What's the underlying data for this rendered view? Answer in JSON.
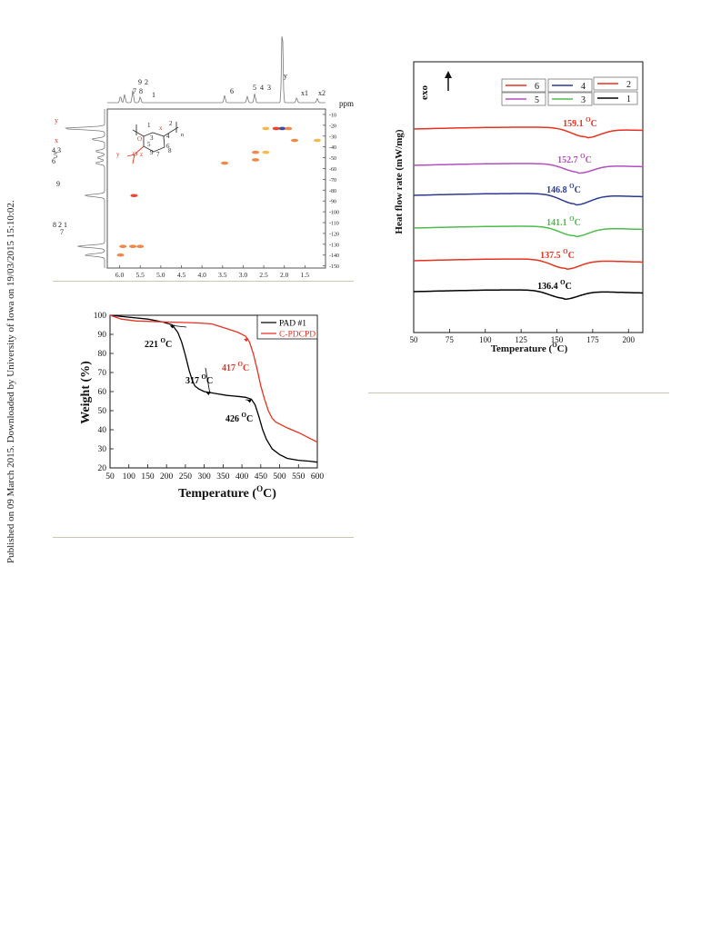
{
  "sidebar_note": "Published on 09 March 2015. Downloaded by University of Iowa on 19/03/2015 15:10:02.",
  "colors": {
    "black": "#000000",
    "red": "#e8311f",
    "blue": "#2b3a93",
    "purple": "#b34ec0",
    "green": "#4fbd4a",
    "orange": "#ef7a35",
    "rule": "#c9c6b2"
  },
  "chart_data": [
    {
      "type": "heatmap",
      "xlabel": "ppm",
      "xlim": [
        6.3,
        1.0
      ],
      "x_ticks": [
        "6.0",
        "5.5",
        "5.0",
        "4.5",
        "4.0",
        "3.5",
        "3.0",
        "2.5",
        "2.0",
        "1.5"
      ],
      "y_ticks": [
        "10",
        "20",
        "30",
        "40",
        "50",
        "60",
        "70",
        "80",
        "90",
        "100",
        "110",
        "120",
        "130",
        "140",
        "150"
      ],
      "ylim": [
        5,
        152
      ],
      "top_peak_labels": [
        "9",
        "2",
        "7",
        "8",
        "1",
        "6",
        "5",
        "4",
        "3",
        "y",
        "x1",
        "x2"
      ],
      "left_peak_labels": [
        "y",
        "x",
        "4,3",
        "5",
        "6",
        "9",
        "8 2 1",
        "7"
      ],
      "structure_labels": {
        "ring": [
          "1",
          "2",
          "3",
          "4",
          "5",
          "6",
          "7",
          "8",
          "9"
        ],
        "side": [
          "x",
          "y",
          "z",
          "O",
          "O"
        ],
        "n": "n"
      },
      "cross_peaks": [
        {
          "x": 2.05,
          "y": 23,
          "color": "#2b3a93"
        },
        {
          "x": 2.2,
          "y": 23,
          "color": "#e8311f"
        },
        {
          "x": 1.9,
          "y": 23,
          "color": "#ef7a35"
        },
        {
          "x": 2.45,
          "y": 23,
          "color": "#f5b335"
        },
        {
          "x": 1.75,
          "y": 34,
          "color": "#ef7a35"
        },
        {
          "x": 1.2,
          "y": 34,
          "color": "#f5b335"
        },
        {
          "x": 2.7,
          "y": 45,
          "color": "#ef7a35"
        },
        {
          "x": 2.45,
          "y": 45,
          "color": "#f5b335"
        },
        {
          "x": 2.7,
          "y": 52,
          "color": "#ef7a35"
        },
        {
          "x": 3.45,
          "y": 55,
          "color": "#ef7a35"
        },
        {
          "x": 5.65,
          "y": 85,
          "color": "#e8311f"
        },
        {
          "x": 5.92,
          "y": 132,
          "color": "#ef7a35"
        },
        {
          "x": 5.68,
          "y": 132,
          "color": "#ef7a35"
        },
        {
          "x": 5.5,
          "y": 132,
          "color": "#ef7a35"
        },
        {
          "x": 5.98,
          "y": 140,
          "color": "#ef7a35"
        }
      ]
    },
    {
      "type": "line",
      "xlabel": "Temperature (",
      "xlabel_sup": "O",
      "xlabel_tail": "C)",
      "ylabel": "Weight (%)",
      "xlim": [
        50,
        600
      ],
      "ylim": [
        20,
        100
      ],
      "x_ticks": [
        50,
        100,
        150,
        200,
        250,
        300,
        350,
        400,
        450,
        500,
        550,
        600
      ],
      "y_ticks": [
        20,
        30,
        40,
        50,
        60,
        70,
        80,
        90,
        100
      ],
      "legend_position": "top-right",
      "series": [
        {
          "name": "PAD #1",
          "color": "#000000",
          "x": [
            50,
            100,
            150,
            190,
            215,
            230,
            240,
            250,
            260,
            268,
            275,
            285,
            300,
            330,
            360,
            390,
            410,
            425,
            435,
            445,
            455,
            465,
            480,
            500,
            520,
            550,
            580,
            600
          ],
          "y": [
            100,
            99,
            98,
            96.5,
            95,
            91,
            86,
            79,
            71,
            66,
            63,
            61.5,
            60,
            59,
            58,
            57.5,
            57,
            56,
            53,
            47,
            40,
            35,
            30,
            27,
            25,
            24,
            23.5,
            23
          ]
        },
        {
          "name": "C-PDCPD",
          "color": "#e8311f",
          "x": [
            50,
            80,
            120,
            200,
            280,
            320,
            360,
            390,
            410,
            420,
            430,
            440,
            450,
            460,
            470,
            480,
            490,
            500,
            520,
            550,
            580,
            600
          ],
          "y": [
            100,
            98,
            97,
            96.5,
            96,
            95.5,
            93,
            91,
            89,
            86,
            80,
            72,
            63,
            56,
            50,
            46,
            44,
            43,
            41,
            38.5,
            35.5,
            33.5
          ]
        }
      ],
      "annotations": [
        {
          "num": "221",
          "sup": "O",
          "unit": "C",
          "x": 221,
          "y": 95,
          "color": "#000000"
        },
        {
          "num": "317",
          "sup": "O",
          "unit": "C",
          "x": 317,
          "y": 60,
          "color": "#000000"
        },
        {
          "num": "426",
          "sup": "O",
          "unit": "C",
          "x": 426,
          "y": 56,
          "color": "#000000"
        },
        {
          "num": "417",
          "sup": "O",
          "unit": "C",
          "x": 417,
          "y": 88,
          "color": "#e8311f"
        }
      ]
    },
    {
      "type": "line",
      "xlabel": "Temperature (",
      "xlabel_sup": "O",
      "xlabel_tail": "C)",
      "ylabel": "Heat flow rate (mW/mg)",
      "exo_label": "exo",
      "xlim": [
        50,
        210
      ],
      "x_ticks": [
        50,
        75,
        100,
        125,
        150,
        175,
        200
      ],
      "legend_position": "top-right",
      "series": [
        {
          "name": "6",
          "color": "#e8311f",
          "tg": "159.1",
          "base": 142,
          "dip": 10,
          "center": 170
        },
        {
          "name": "5",
          "color": "#b34ec0",
          "tg": "152.7",
          "base": 182,
          "dip": 9,
          "center": 165
        },
        {
          "name": "4",
          "color": "#2b3a93",
          "tg": "146.8",
          "base": 215,
          "dip": 11,
          "center": 163
        },
        {
          "name": "3",
          "color": "#4fbd4a",
          "tg": "141.1",
          "base": 251,
          "dip": 10,
          "center": 162
        },
        {
          "name": "2",
          "color": "#e8311f",
          "tg": "137.5",
          "base": 287,
          "dip": 10,
          "center": 156
        },
        {
          "name": "1",
          "color": "#000000",
          "tg": "136.4",
          "base": 321,
          "dip": 9,
          "center": 155
        }
      ],
      "tg_sup": "O",
      "tg_unit": "C"
    }
  ]
}
